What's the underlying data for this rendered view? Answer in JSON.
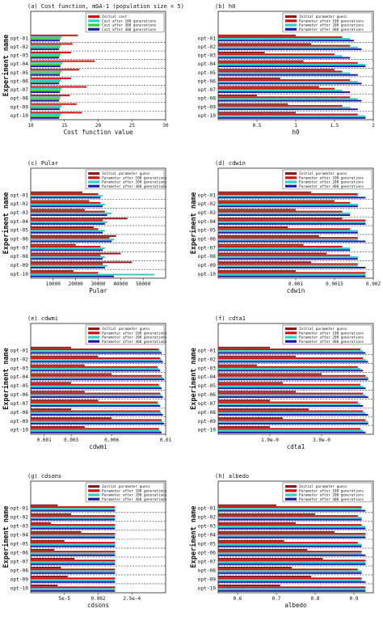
{
  "experiments": [
    "opt-01",
    "opt-02",
    "opt-03",
    "opt-04",
    "opt-05",
    "opt-06",
    "opt-07",
    "opt-08",
    "opt-09",
    "opt-10"
  ],
  "chart_data": [
    {
      "type": "bar",
      "orientation": "horizontal",
      "title": "(a)   Cost function, mGA-1 (population size = 5)",
      "xlabel": "Cost function value",
      "ylabel": "Experiment name",
      "xlim": [
        10,
        30
      ],
      "xticks": [
        "10",
        "15",
        "20",
        "25",
        "30"
      ],
      "categories": [
        "opt-01",
        "opt-02",
        "opt-03",
        "opt-04",
        "opt-05",
        "opt-06",
        "opt-07",
        "opt-08",
        "opt-09",
        "opt-10"
      ],
      "legend": "top-right",
      "series": [
        {
          "name": "Initial cost",
          "color": "#cc1111",
          "values": [
            17.0,
            16.2,
            16.0,
            19.5,
            17.2,
            16.0,
            18.3,
            15.8,
            16.8,
            17.6
          ]
        },
        {
          "name": "Cost after 100 generations",
          "color": "#2ccfc2",
          "values": [
            14.6,
            14.5,
            14.4,
            14.7,
            14.6,
            14.5,
            14.6,
            14.4,
            14.6,
            14.5
          ]
        },
        {
          "name": "Cost after 300 generations",
          "color": "#33cc33",
          "values": [
            14.4,
            14.3,
            14.3,
            14.5,
            14.4,
            14.3,
            14.4,
            14.3,
            14.4,
            14.3
          ]
        },
        {
          "name": "Cost after 400 generations",
          "color": "#1a1aa8",
          "values": [
            14.3,
            14.2,
            14.2,
            14.4,
            14.3,
            14.2,
            14.3,
            14.2,
            14.3,
            14.2
          ]
        }
      ]
    },
    {
      "type": "bar",
      "orientation": "horizontal",
      "title": "(b)                 h0",
      "xlabel": "h0",
      "ylabel": "",
      "xlim": [
        0,
        2
      ],
      "xticks": [
        "0.5",
        "1",
        "1.5",
        "2"
      ],
      "categories": [
        "opt-01",
        "opt-02",
        "opt-03",
        "opt-04",
        "opt-05",
        "opt-06",
        "opt-07",
        "opt-08",
        "opt-09",
        "opt-10"
      ],
      "legend": "top-right",
      "series": [
        {
          "name": "Initial parameter guess",
          "color": "#8b1a1a",
          "values": [
            1.0,
            1.2,
            0.6,
            1.1,
            1.5,
            0.8,
            1.3,
            0.5,
            0.9,
            1.0
          ]
        },
        {
          "name": "Parameter after 100 generations",
          "color": "#cc1111",
          "values": [
            1.6,
            1.7,
            1.5,
            1.8,
            1.6,
            1.7,
            1.5,
            1.7,
            1.6,
            1.8
          ]
        },
        {
          "name": "Parameter after 200 generations",
          "color": "#2ccfc2",
          "values": [
            1.7,
            1.8,
            1.6,
            1.9,
            1.7,
            1.8,
            1.6,
            1.8,
            1.7,
            1.9
          ]
        },
        {
          "name": "Parameter after 400 generations",
          "color": "#1a1aa8",
          "values": [
            1.75,
            1.85,
            1.7,
            1.9,
            1.8,
            1.85,
            1.7,
            1.85,
            1.8,
            1.9
          ]
        }
      ]
    },
    {
      "type": "bar",
      "orientation": "horizontal",
      "title": "(c)                 Pular",
      "xlabel": "Pular",
      "ylabel": "Experiment name",
      "xlim": [
        0,
        60000
      ],
      "xticks": [
        "10000",
        "20000",
        "30000",
        "40000",
        "50000"
      ],
      "categories": [
        "opt-01",
        "opt-02",
        "opt-03",
        "opt-04",
        "opt-05",
        "opt-06",
        "opt-07",
        "opt-08",
        "opt-09",
        "opt-10"
      ],
      "legend": "top-right",
      "series": [
        {
          "name": "Initial parameter guess",
          "color": "#8b1a1a",
          "values": [
            23000,
            26000,
            24000,
            43000,
            28000,
            38000,
            20000,
            40000,
            45000,
            19000
          ]
        },
        {
          "name": "Parameter after 100 generations",
          "color": "#cc1111",
          "values": [
            30000,
            31000,
            33000,
            32000,
            30000,
            35000,
            31000,
            31000,
            32000,
            30000
          ]
        },
        {
          "name": "Parameter after 200 generations",
          "color": "#2ccfc2",
          "values": [
            32000,
            33000,
            36000,
            34000,
            33000,
            37000,
            33000,
            33000,
            34000,
            55000
          ]
        },
        {
          "name": "Parameter after 400 generations",
          "color": "#1a1aa8",
          "values": [
            31000,
            32000,
            34000,
            33000,
            32000,
            36000,
            32000,
            32000,
            33000,
            37000
          ]
        }
      ]
    },
    {
      "type": "bar",
      "orientation": "horizontal",
      "title": "(d)                 cdwin",
      "xlabel": "cdwin",
      "ylabel": "Experiment name",
      "xlim": [
        0,
        0.002
      ],
      "xticks": [
        "0.001",
        "0.0015",
        "0.002"
      ],
      "categories": [
        "opt-01",
        "opt-02",
        "opt-03",
        "opt-04",
        "opt-05",
        "opt-06",
        "opt-07",
        "opt-08",
        "opt-09",
        "opt-10"
      ],
      "legend": "top-right",
      "series": [
        {
          "name": "Initial parameter guess",
          "color": "#8b1a1a",
          "values": [
            0.0012,
            0.0015,
            0.001,
            0.0016,
            0.0009,
            0.0013,
            0.0011,
            0.0014,
            0.0012,
            0.001
          ]
        },
        {
          "name": "Parameter after 100 generations",
          "color": "#cc1111",
          "values": [
            0.0018,
            0.0017,
            0.0016,
            0.0019,
            0.0017,
            0.0018,
            0.0016,
            0.0017,
            0.0018,
            0.0019
          ]
        },
        {
          "name": "Parameter after 200 generations",
          "color": "#2ccfc2",
          "values": [
            0.0018,
            0.0018,
            0.0017,
            0.0019,
            0.0018,
            0.0018,
            0.0017,
            0.0018,
            0.0018,
            0.0019
          ]
        },
        {
          "name": "Parameter after 400 generations",
          "color": "#1a1aa8",
          "values": [
            0.0019,
            0.0018,
            0.0017,
            0.0019,
            0.0018,
            0.0019,
            0.0017,
            0.0018,
            0.0019,
            0.0019
          ]
        }
      ]
    },
    {
      "type": "bar",
      "orientation": "horizontal",
      "title": "(e)                 cdwmi",
      "xlabel": "cdwmi",
      "ylabel": "Experiment name",
      "xlim": [
        0,
        0.01
      ],
      "xticks": [
        "0.001",
        "0.003",
        "0.006",
        "0.01"
      ],
      "categories": [
        "opt-01",
        "opt-02",
        "opt-03",
        "opt-04",
        "opt-05",
        "opt-06",
        "opt-07",
        "opt-08",
        "opt-09",
        "opt-10"
      ],
      "legend": "top-right",
      "series": [
        {
          "name": "Initial parameter guess",
          "color": "#8b1a1a",
          "values": [
            0.003,
            0.005,
            0.004,
            0.006,
            0.003,
            0.004,
            0.005,
            0.003,
            0.006,
            0.004
          ]
        },
        {
          "name": "Parameter after 100 generations",
          "color": "#cc1111",
          "values": [
            0.0095,
            0.0096,
            0.0094,
            0.0097,
            0.0095,
            0.0096,
            0.0094,
            0.0096,
            0.0097,
            0.0095
          ]
        },
        {
          "name": "Parameter after 200 generations",
          "color": "#2ccfc2",
          "values": [
            0.0096,
            0.0097,
            0.0095,
            0.0098,
            0.0096,
            0.0097,
            0.0095,
            0.0097,
            0.0098,
            0.0096
          ]
        },
        {
          "name": "Parameter after 400 generations",
          "color": "#1a1aa8",
          "values": [
            0.0097,
            0.0098,
            0.0096,
            0.0099,
            0.0097,
            0.0098,
            0.0096,
            0.0098,
            0.0099,
            0.0097
          ]
        }
      ]
    },
    {
      "type": "bar",
      "orientation": "horizontal",
      "title": "(f)                 cdta1",
      "xlabel": "cdta1",
      "ylabel": "Experiment name",
      "xlim": [
        0,
        6e-05
      ],
      "xticks": [
        "1.0e-0",
        "3.0e-0"
      ],
      "categories": [
        "opt-01",
        "opt-02",
        "opt-03",
        "opt-04",
        "opt-05",
        "opt-06",
        "opt-07",
        "opt-08",
        "opt-09",
        "opt-10"
      ],
      "legend": "top-right",
      "series": [
        {
          "name": "Initial parameter guess",
          "color": "#8b1a1a",
          "values": [
            2e-05,
            3e-05,
            1.5e-05,
            4e-05,
            2.5e-05,
            3e-05,
            2e-05,
            3.5e-05,
            2.5e-05,
            2e-05
          ]
        },
        {
          "name": "Parameter after 100 generations",
          "color": "#cc1111",
          "values": [
            5.5e-05,
            5.6e-05,
            5.4e-05,
            5.7e-05,
            5.5e-05,
            5.6e-05,
            5.4e-05,
            5.6e-05,
            5.7e-05,
            5.5e-05
          ]
        },
        {
          "name": "Parameter after 200 generations",
          "color": "#2ccfc2",
          "values": [
            5.6e-05,
            5.7e-05,
            5.5e-05,
            5.8e-05,
            5.6e-05,
            5.7e-05,
            5.5e-05,
            5.7e-05,
            5.8e-05,
            5.6e-05
          ]
        },
        {
          "name": "Parameter after 400 generations",
          "color": "#1a1aa8",
          "values": [
            5.7e-05,
            5.8e-05,
            5.6e-05,
            5.8e-05,
            5.7e-05,
            5.8e-05,
            5.6e-05,
            5.8e-05,
            5.8e-05,
            5.7e-05
          ]
        }
      ]
    },
    {
      "type": "bar",
      "orientation": "horizontal",
      "title": "(g)                 cdsons",
      "xlabel": "cdsons",
      "ylabel": "Experiment name",
      "xlim": [
        0,
        0.0004
      ],
      "xticks": [
        "5e-5",
        "0.002",
        "2.5e-4"
      ],
      "categories": [
        "opt-01",
        "opt-02",
        "opt-03",
        "opt-04",
        "opt-05",
        "opt-06",
        "opt-07",
        "opt-08",
        "opt-09",
        "opt-10"
      ],
      "legend": "top-right",
      "series": [
        {
          "name": "Initial parameter guess",
          "color": "#8b1a1a",
          "values": [
            8e-05,
            0.00012,
            6e-05,
            0.00015,
            0.0001,
            7e-05,
            0.00013,
            9e-05,
            0.00011,
            8e-05
          ]
        },
        {
          "name": "Parameter after 100 generations",
          "color": "#cc1111",
          "values": [
            0.00025,
            0.00025,
            0.00025,
            0.00025,
            0.00025,
            0.00025,
            0.00025,
            0.00025,
            0.00025,
            0.00025
          ]
        },
        {
          "name": "Parameter after 200 generations",
          "color": "#2ccfc2",
          "values": [
            0.00025,
            0.00025,
            0.00025,
            0.00025,
            0.00025,
            0.00025,
            0.00025,
            0.00025,
            0.00025,
            0.00025
          ]
        },
        {
          "name": "Parameter after 400 generations",
          "color": "#1a1aa8",
          "values": [
            0.00025,
            0.00025,
            0.00025,
            0.00025,
            0.00025,
            0.00025,
            0.00025,
            0.00025,
            0.00025,
            0.00025
          ]
        }
      ]
    },
    {
      "type": "bar",
      "orientation": "horizontal",
      "title": "(h)                 albedo",
      "xlabel": "albedo",
      "ylabel": "Experiment name",
      "xlim": [
        0.55,
        0.95
      ],
      "xticks": [
        "0.6",
        "0.7",
        "0.8",
        "0.9"
      ],
      "categories": [
        "opt-01",
        "opt-02",
        "opt-03",
        "opt-04",
        "opt-05",
        "opt-06",
        "opt-07",
        "opt-08",
        "opt-09",
        "opt-10"
      ],
      "legend": "top-right",
      "series": [
        {
          "name": "Initial parameter guess",
          "color": "#8b1a1a",
          "values": [
            0.7,
            0.8,
            0.75,
            0.85,
            0.72,
            0.78,
            0.82,
            0.74,
            0.79,
            0.71
          ]
        },
        {
          "name": "Parameter after 100 generations",
          "color": "#cc1111",
          "values": [
            0.92,
            0.91,
            0.92,
            0.93,
            0.91,
            0.92,
            0.93,
            0.91,
            0.92,
            0.93
          ]
        },
        {
          "name": "Parameter after 200 generations",
          "color": "#2ccfc2",
          "values": [
            0.92,
            0.92,
            0.93,
            0.93,
            0.92,
            0.92,
            0.93,
            0.92,
            0.92,
            0.93
          ]
        },
        {
          "name": "Parameter after 400 generations",
          "color": "#1a1aa8",
          "values": [
            0.93,
            0.92,
            0.93,
            0.93,
            0.92,
            0.93,
            0.93,
            0.92,
            0.93,
            0.93
          ]
        }
      ]
    }
  ]
}
